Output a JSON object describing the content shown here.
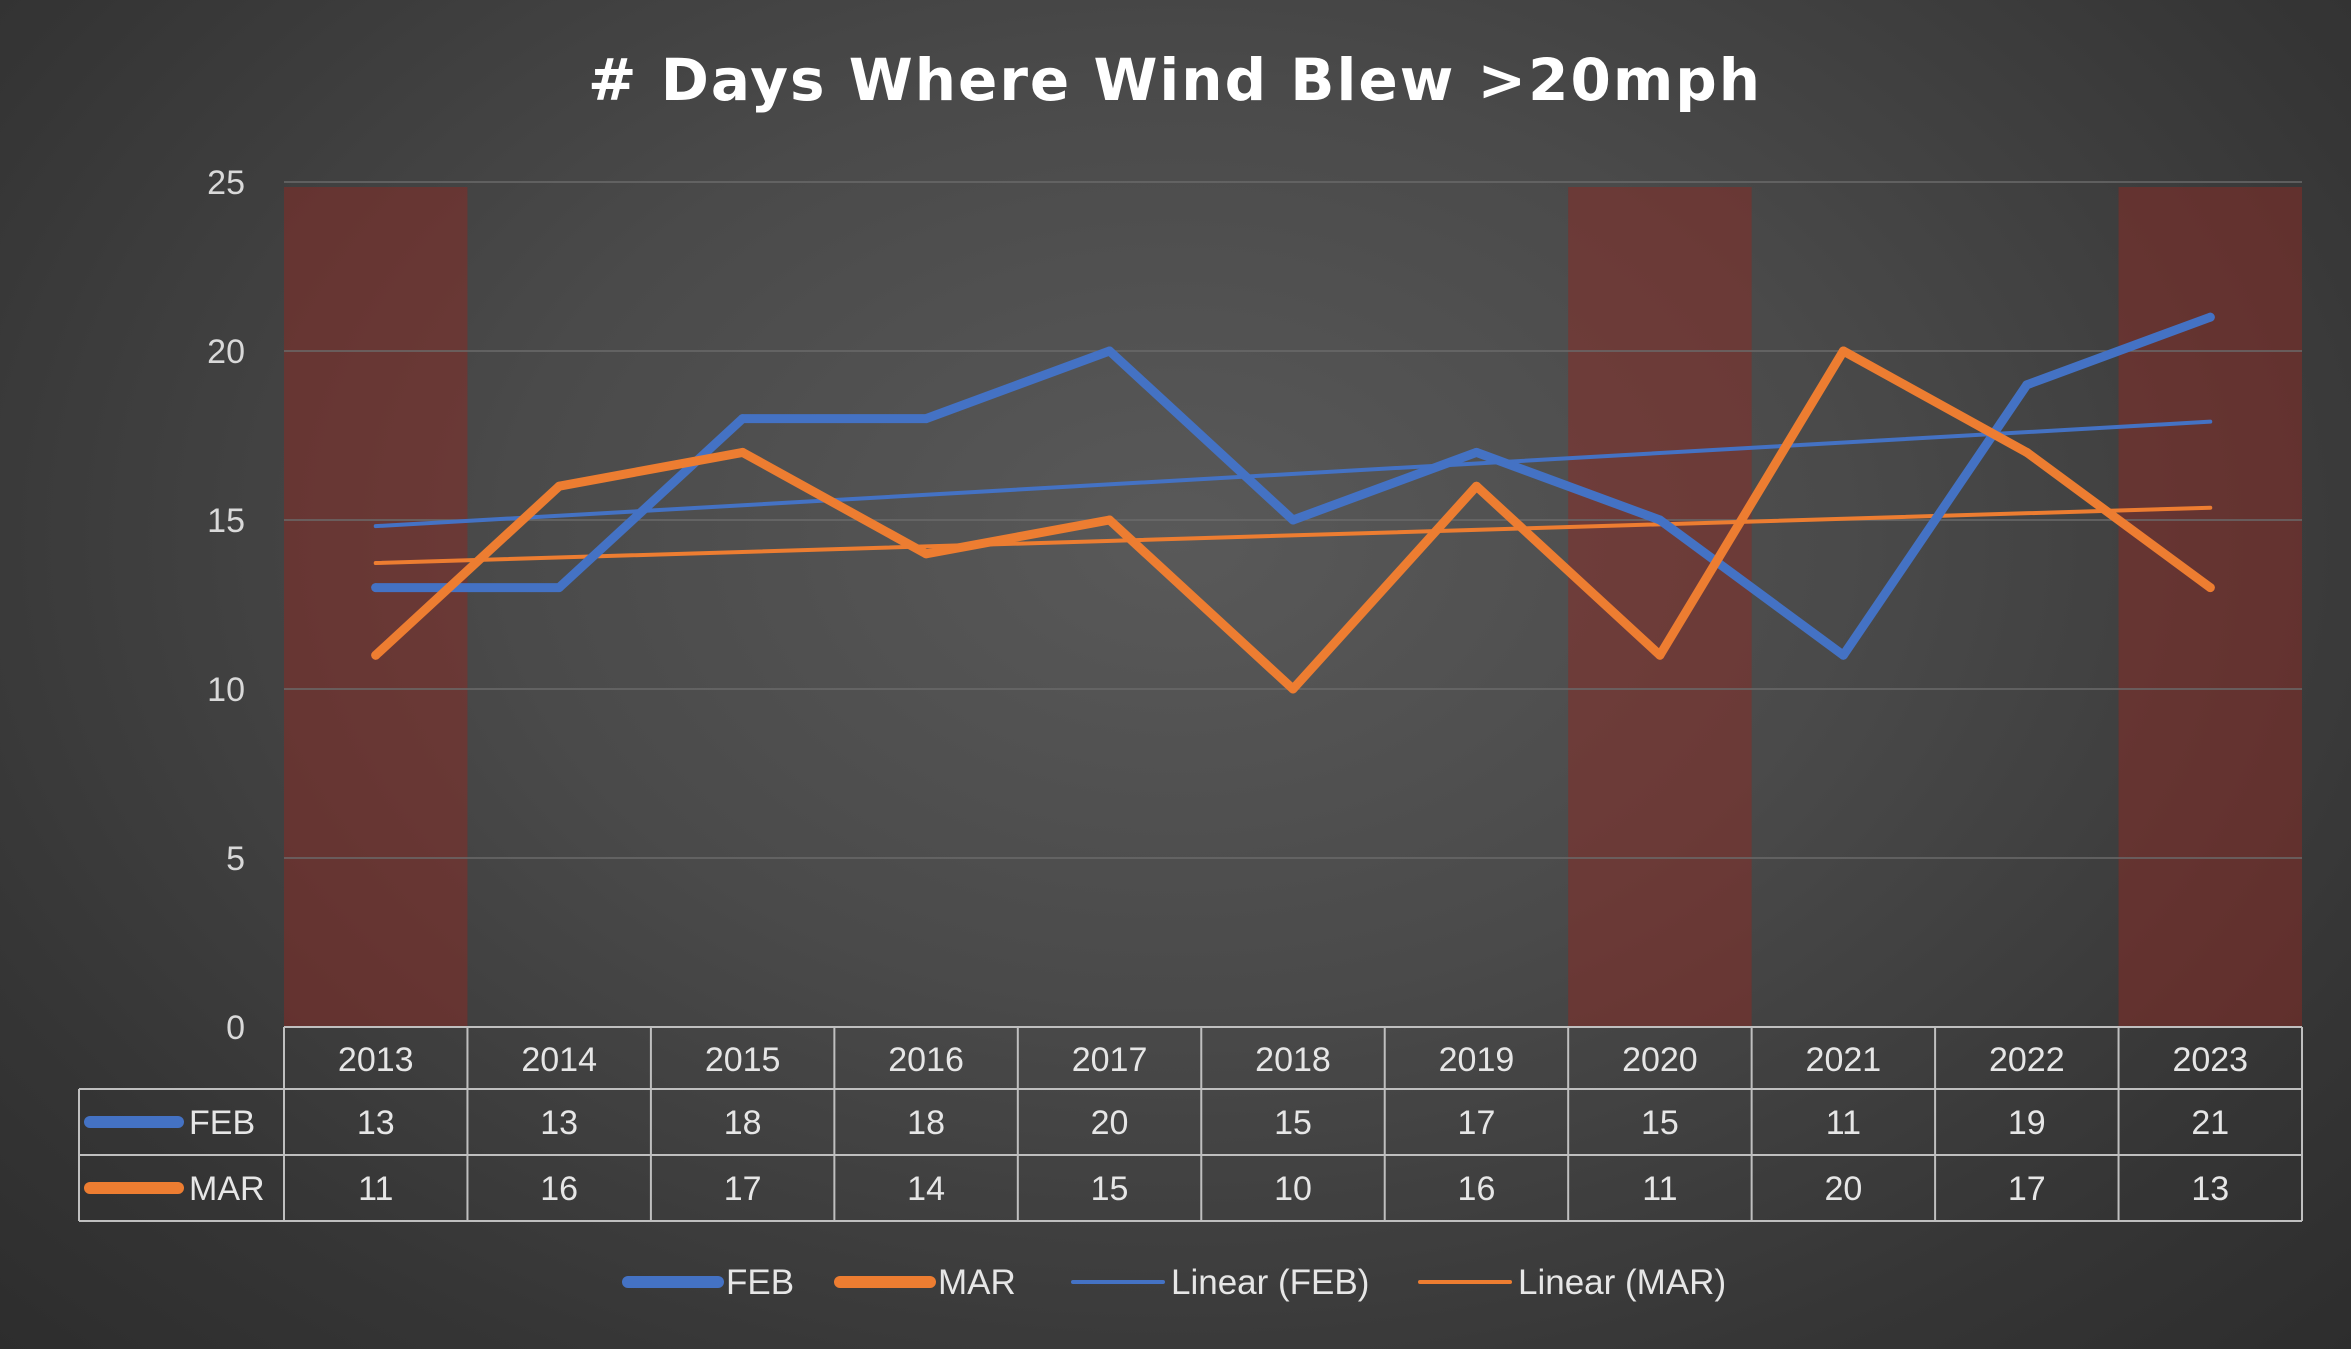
{
  "chart_data": {
    "type": "line",
    "title": "# Days Where Wind Blew >20mph",
    "categories": [
      "2013",
      "2014",
      "2015",
      "2016",
      "2017",
      "2018",
      "2019",
      "2020",
      "2021",
      "2022",
      "2023"
    ],
    "series": [
      {
        "name": "FEB",
        "values": [
          13,
          13,
          18,
          18,
          20,
          15,
          17,
          15,
          11,
          19,
          21
        ],
        "color": "#4472c4"
      },
      {
        "name": "MAR",
        "values": [
          11,
          16,
          17,
          14,
          15,
          10,
          16,
          11,
          20,
          17,
          13
        ],
        "color": "#ed7d31"
      }
    ],
    "trendlines": [
      {
        "name": "Linear (FEB)",
        "type": "linear",
        "of": "FEB",
        "color": "#4472c4"
      },
      {
        "name": "Linear (MAR)",
        "type": "linear",
        "of": "MAR",
        "color": "#ed7d31"
      }
    ],
    "highlighted_categories": [
      "2013",
      "2020",
      "2023"
    ],
    "highlight_color": "#8b2a24",
    "ylim": [
      0,
      25
    ],
    "yticks": [
      "0",
      "5",
      "10",
      "15",
      "20",
      "25"
    ],
    "grid": true,
    "data_table": true,
    "legend_position": "bottom"
  }
}
